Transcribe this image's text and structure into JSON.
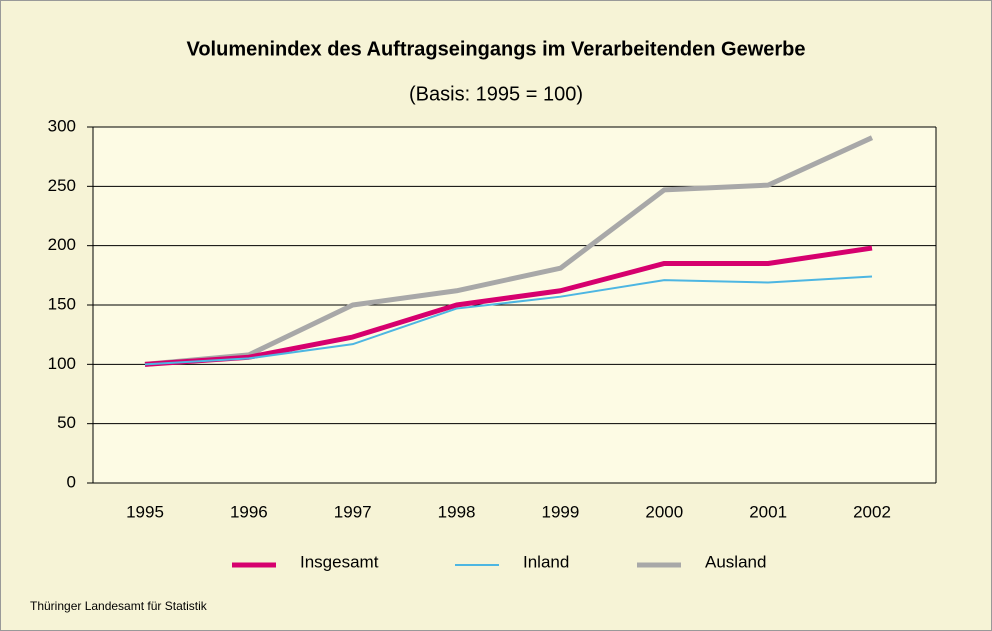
{
  "chart_data": {
    "type": "line",
    "title": "Volumenindex des Auftragseingangs im Verarbeitenden Gewerbe",
    "subtitle": "(Basis: 1995 = 100)",
    "source": "Thüringer Landesamt für Statistik",
    "categories": [
      "1995",
      "1996",
      "1997",
      "1998",
      "1999",
      "2000",
      "2001",
      "2002"
    ],
    "series": [
      {
        "name": "Insgesamt",
        "color": "#d6006e",
        "values": [
          100,
          106,
          123,
          150,
          162,
          185,
          185,
          198
        ]
      },
      {
        "name": "Inland",
        "color": "#4db6e2",
        "values": [
          100,
          105,
          117,
          147,
          157,
          171,
          169,
          174
        ]
      },
      {
        "name": "Ausland",
        "color": "#a8a8a8",
        "values": [
          100,
          108,
          150,
          162,
          181,
          247,
          251,
          291
        ]
      }
    ],
    "ylim": [
      0,
      300
    ],
    "yticks": [
      0,
      50,
      100,
      150,
      200,
      250,
      300
    ],
    "grid": true
  }
}
